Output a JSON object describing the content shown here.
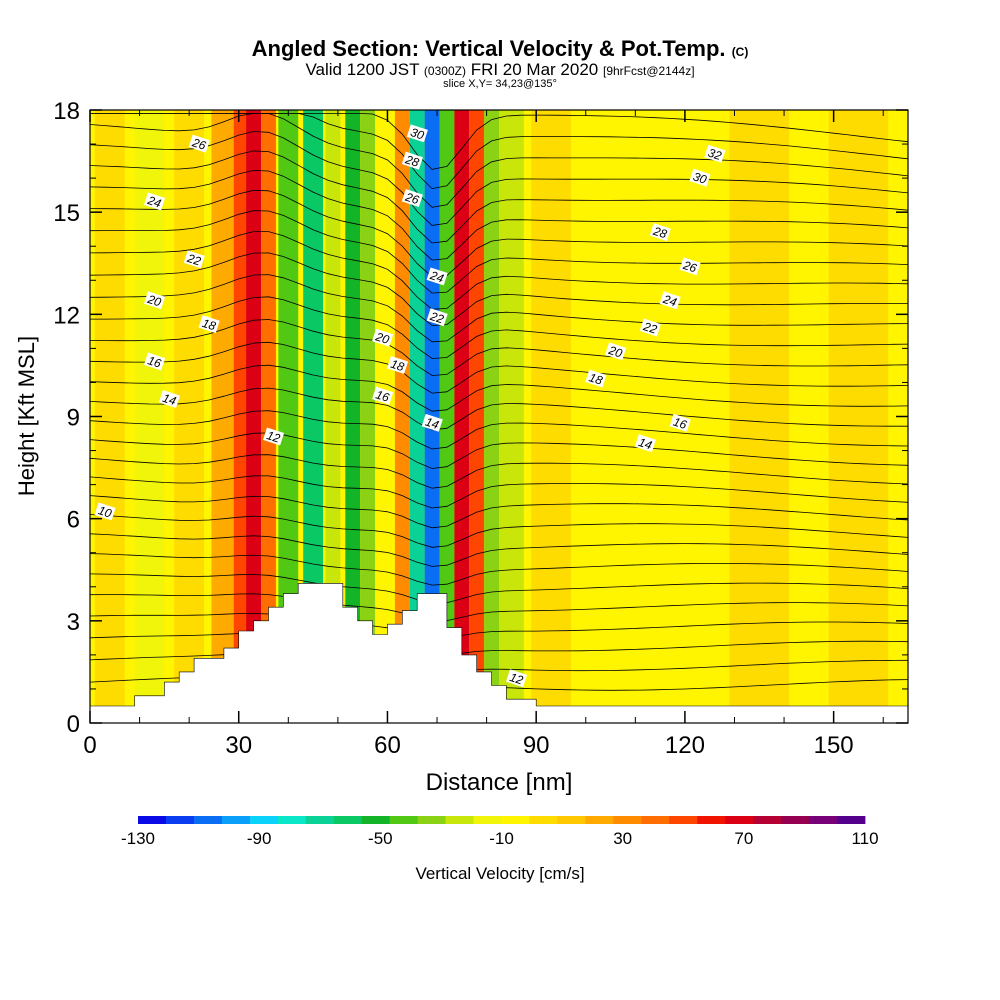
{
  "title": {
    "main": "Angled Section: Vertical Velocity & Pot.Temp.",
    "mark": "(C)",
    "valid_a": "Valid 1200 JST",
    "valid_z": "(0300Z)",
    "valid_b": "FRI 20 Mar 2020",
    "fcst": "[9hrFcst@2144z]",
    "slice": "slice X,Y= 34,23@135°"
  },
  "chart_data": {
    "type": "heatmap",
    "xlabel": "Distance [nm]",
    "ylabel": "Height [Kft MSL]",
    "xlim": [
      0,
      165
    ],
    "ylim": [
      0,
      18
    ],
    "xticks": [
      0,
      30,
      60,
      90,
      120,
      150
    ],
    "yticks": [
      0,
      3,
      6,
      9,
      12,
      15,
      18
    ],
    "color_variable": "Vertical Velocity [cm/s]",
    "colorbar": {
      "min": -130,
      "max": 110,
      "step": 10,
      "tick_labels": [
        "-130",
        "-90",
        "-50",
        "-10",
        "30",
        "70",
        "110"
      ],
      "colors": [
        "#0a0ae6",
        "#0a3cf0",
        "#0a6ef5",
        "#0aa0fa",
        "#0ad2fa",
        "#0ae6c8",
        "#0ad296",
        "#0ac864",
        "#14b428",
        "#50c814",
        "#8cd214",
        "#c8e60a",
        "#f0f50a",
        "#fff500",
        "#ffdc00",
        "#ffc800",
        "#ffaa00",
        "#ff8c00",
        "#ff6e00",
        "#ff4600",
        "#f01400",
        "#dc0014",
        "#b40032",
        "#960050",
        "#780078",
        "#55008c"
      ]
    },
    "velocity_bands": [
      {
        "x_center": 4,
        "width": 6,
        "value": 15
      },
      {
        "x_center": 12,
        "width": 6,
        "value": -10
      },
      {
        "x_center": 20,
        "width": 6,
        "value": 10
      },
      {
        "x_center": 27,
        "width": 5,
        "value": 30
      },
      {
        "x_center": 31,
        "width": 4,
        "value": 60
      },
      {
        "x_center": 33,
        "width": 3,
        "value": 80
      },
      {
        "x_center": 36,
        "width": 3,
        "value": 50
      },
      {
        "x_center": 40,
        "width": 4,
        "value": -40
      },
      {
        "x_center": 45,
        "width": 4,
        "value": -60
      },
      {
        "x_center": 49,
        "width": 3,
        "value": -20
      },
      {
        "x_center": 53,
        "width": 3,
        "value": -50
      },
      {
        "x_center": 56,
        "width": 3,
        "value": -30
      },
      {
        "x_center": 60,
        "width": 3,
        "value": 0
      },
      {
        "x_center": 63,
        "width": 3,
        "value": 40
      },
      {
        "x_center": 66,
        "width": 3,
        "value": -70
      },
      {
        "x_center": 69,
        "width": 3,
        "value": -110
      },
      {
        "x_center": 72,
        "width": 3,
        "value": -40
      },
      {
        "x_center": 75,
        "width": 3,
        "value": 80
      },
      {
        "x_center": 78,
        "width": 3,
        "value": 60
      },
      {
        "x_center": 81,
        "width": 3,
        "value": -30
      },
      {
        "x_center": 85,
        "width": 5,
        "value": -20
      },
      {
        "x_center": 93,
        "width": 8,
        "value": 10
      },
      {
        "x_center": 105,
        "width": 10,
        "value": 0
      },
      {
        "x_center": 120,
        "width": 10,
        "value": 5
      },
      {
        "x_center": 135,
        "width": 12,
        "value": 10
      },
      {
        "x_center": 155,
        "width": 12,
        "value": 15
      }
    ],
    "terrain": [
      [
        0,
        0.5
      ],
      [
        9,
        0.5
      ],
      [
        9,
        0.8
      ],
      [
        15,
        0.8
      ],
      [
        15,
        1.2
      ],
      [
        18,
        1.2
      ],
      [
        18,
        1.5
      ],
      [
        21,
        1.5
      ],
      [
        21,
        1.9
      ],
      [
        27,
        1.9
      ],
      [
        27,
        2.2
      ],
      [
        30,
        2.2
      ],
      [
        30,
        2.7
      ],
      [
        33,
        2.7
      ],
      [
        33,
        3.0
      ],
      [
        36,
        3.0
      ],
      [
        36,
        3.4
      ],
      [
        39,
        3.4
      ],
      [
        39,
        3.8
      ],
      [
        42,
        3.8
      ],
      [
        42,
        4.1
      ],
      [
        51,
        4.1
      ],
      [
        51,
        3.4
      ],
      [
        54,
        3.4
      ],
      [
        54,
        3.0
      ],
      [
        57,
        3.0
      ],
      [
        57,
        2.6
      ],
      [
        60,
        2.6
      ],
      [
        60,
        2.9
      ],
      [
        63,
        2.9
      ],
      [
        63,
        3.3
      ],
      [
        66,
        3.3
      ],
      [
        66,
        3.8
      ],
      [
        72,
        3.8
      ],
      [
        72,
        2.8
      ],
      [
        75,
        2.8
      ],
      [
        75,
        2.0
      ],
      [
        78,
        2.0
      ],
      [
        78,
        1.5
      ],
      [
        81,
        1.5
      ],
      [
        81,
        1.1
      ],
      [
        84,
        1.1
      ],
      [
        84,
        0.7
      ],
      [
        90,
        0.7
      ],
      [
        90,
        0.5
      ],
      [
        165,
        0.5
      ]
    ],
    "contour_labels": [
      {
        "text": "26",
        "x": 22,
        "y": 17.0
      },
      {
        "text": "24",
        "x": 13,
        "y": 15.3
      },
      {
        "text": "22",
        "x": 21,
        "y": 13.6
      },
      {
        "text": "20",
        "x": 13,
        "y": 12.4
      },
      {
        "text": "18",
        "x": 24,
        "y": 11.7
      },
      {
        "text": "16",
        "x": 13,
        "y": 10.6
      },
      {
        "text": "14",
        "x": 16,
        "y": 9.5
      },
      {
        "text": "12",
        "x": 37,
        "y": 8.4
      },
      {
        "text": "10",
        "x": 3,
        "y": 6.2
      },
      {
        "text": "30",
        "x": 66,
        "y": 17.3
      },
      {
        "text": "28",
        "x": 65,
        "y": 16.5
      },
      {
        "text": "26",
        "x": 65,
        "y": 15.4
      },
      {
        "text": "24",
        "x": 70,
        "y": 13.1
      },
      {
        "text": "22",
        "x": 70,
        "y": 11.9
      },
      {
        "text": "20",
        "x": 59,
        "y": 11.3
      },
      {
        "text": "18",
        "x": 62,
        "y": 10.5
      },
      {
        "text": "16",
        "x": 59,
        "y": 9.6
      },
      {
        "text": "14",
        "x": 69,
        "y": 8.8
      },
      {
        "text": "32",
        "x": 126,
        "y": 16.7
      },
      {
        "text": "30",
        "x": 123,
        "y": 16.0
      },
      {
        "text": "28",
        "x": 115,
        "y": 14.4
      },
      {
        "text": "26",
        "x": 121,
        "y": 13.4
      },
      {
        "text": "24",
        "x": 117,
        "y": 12.4
      },
      {
        "text": "22",
        "x": 113,
        "y": 11.6
      },
      {
        "text": "20",
        "x": 106,
        "y": 10.9
      },
      {
        "text": "18",
        "x": 102,
        "y": 10.1
      },
      {
        "text": "16",
        "x": 119,
        "y": 8.8
      },
      {
        "text": "14",
        "x": 112,
        "y": 8.2
      },
      {
        "text": "12",
        "x": 86,
        "y": 1.3
      }
    ]
  }
}
